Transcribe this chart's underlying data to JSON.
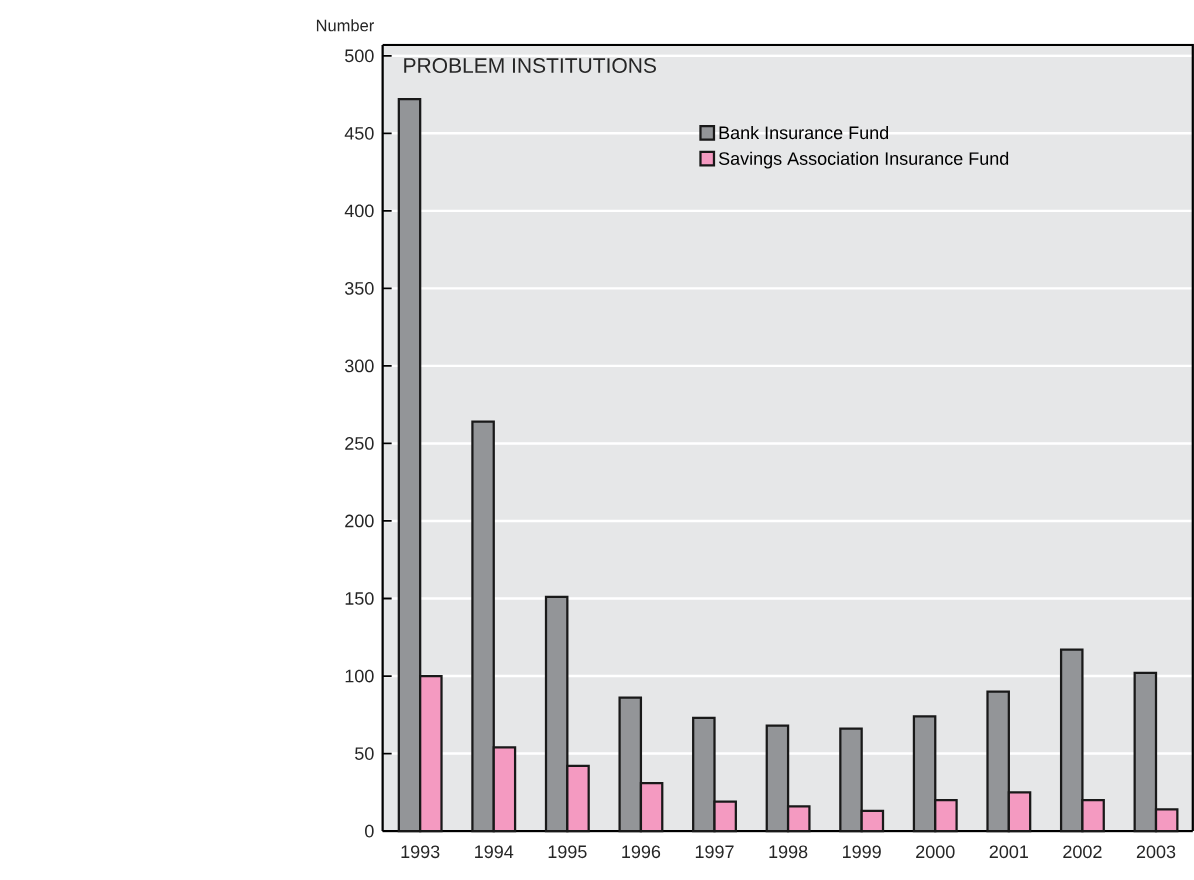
{
  "chart_data": {
    "type": "bar",
    "title": "PROBLEM INSTITUTIONS",
    "ylabel": "Number",
    "categories": [
      "1993",
      "1994",
      "1995",
      "1996",
      "1997",
      "1998",
      "1999",
      "2000",
      "2001",
      "2002",
      "2003"
    ],
    "series": [
      {
        "name": "Bank Insurance Fund",
        "color": "#939598",
        "values": [
          472,
          264,
          151,
          86,
          73,
          68,
          66,
          74,
          90,
          117,
          102
        ]
      },
      {
        "name": "Savings Association Insurance Fund",
        "color": "#f49ac1",
        "values": [
          100,
          54,
          42,
          31,
          19,
          16,
          13,
          20,
          25,
          20,
          14
        ]
      }
    ],
    "ylim": [
      0,
      507
    ],
    "yticks": [
      0,
      50,
      100,
      150,
      200,
      250,
      300,
      350,
      400,
      450,
      500
    ],
    "grid": "y",
    "legend": "top"
  }
}
